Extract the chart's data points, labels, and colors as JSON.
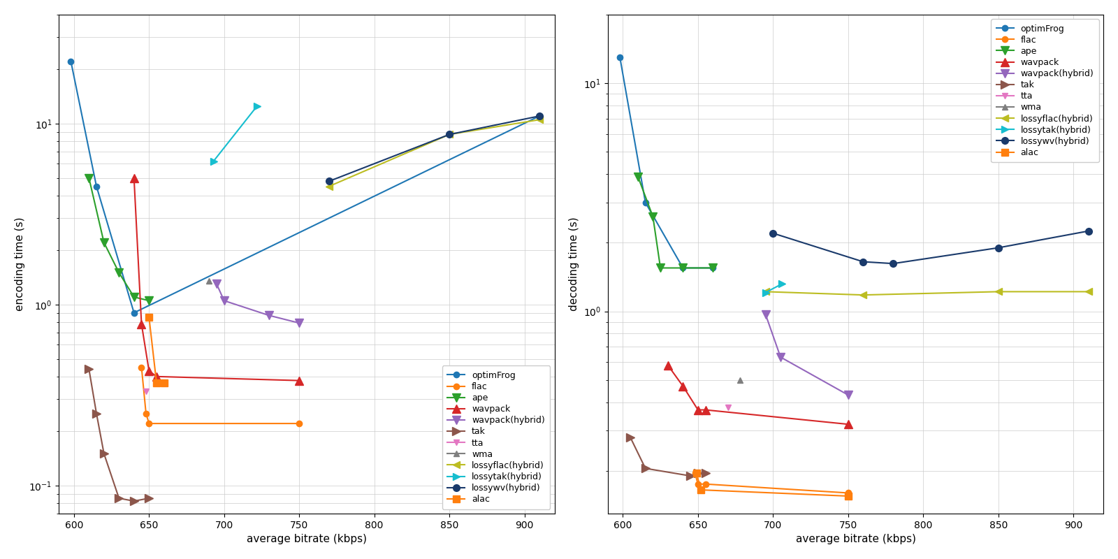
{
  "series": [
    {
      "name": "optimFrog",
      "color": "#1f77b4",
      "marker": "o",
      "enc_data": [
        [
          598,
          22
        ],
        [
          615,
          4.5
        ],
        [
          640,
          0.9
        ],
        [
          910,
          11.0
        ]
      ],
      "dec_data": [
        [
          598,
          13.0
        ],
        [
          615,
          3.0
        ],
        [
          640,
          1.55
        ],
        [
          660,
          1.55
        ]
      ]
    },
    {
      "name": "flac",
      "color": "#ff7f0e",
      "marker": "o",
      "enc_data": [
        [
          645,
          0.45
        ],
        [
          648,
          0.25
        ],
        [
          650,
          0.22
        ],
        [
          750,
          0.22
        ]
      ],
      "dec_data": [
        [
          648,
          0.195
        ],
        [
          650,
          0.175
        ],
        [
          655,
          0.175
        ],
        [
          750,
          0.16
        ]
      ]
    },
    {
      "name": "ape",
      "color": "#2ca02c",
      "marker": "v",
      "enc_data": [
        [
          610,
          5.0
        ],
        [
          620,
          2.2
        ],
        [
          630,
          1.5
        ],
        [
          640,
          1.1
        ],
        [
          650,
          1.05
        ]
      ],
      "dec_data": [
        [
          610,
          3.9
        ],
        [
          620,
          2.6
        ],
        [
          625,
          1.55
        ],
        [
          640,
          1.55
        ],
        [
          660,
          1.55
        ]
      ]
    },
    {
      "name": "wavpack",
      "color": "#d62728",
      "marker": "^",
      "enc_data": [
        [
          640,
          5.0
        ],
        [
          645,
          0.78
        ],
        [
          650,
          0.43
        ],
        [
          655,
          0.4
        ],
        [
          750,
          0.38
        ]
      ],
      "dec_data": [
        [
          630,
          0.58
        ],
        [
          640,
          0.47
        ],
        [
          650,
          0.37
        ],
        [
          655,
          0.37
        ],
        [
          750,
          0.32
        ]
      ]
    },
    {
      "name": "wavpack(hybrid)",
      "color": "#9467bd",
      "marker": "v",
      "enc_data": [
        [
          695,
          1.3
        ],
        [
          700,
          1.05
        ],
        [
          730,
          0.87
        ],
        [
          750,
          0.79
        ]
      ],
      "dec_data": [
        [
          695,
          0.97
        ],
        [
          705,
          0.63
        ],
        [
          750,
          0.43
        ]
      ]
    },
    {
      "name": "tak",
      "color": "#8c564b",
      "marker": ">",
      "enc_data": [
        [
          610,
          0.44
        ],
        [
          615,
          0.25
        ],
        [
          620,
          0.15
        ],
        [
          630,
          0.085
        ],
        [
          640,
          0.082
        ],
        [
          650,
          0.085
        ]
      ],
      "dec_data": [
        [
          605,
          0.28
        ],
        [
          615,
          0.205
        ],
        [
          645,
          0.19
        ],
        [
          650,
          0.195
        ],
        [
          655,
          0.195
        ]
      ]
    },
    {
      "name": "tta",
      "color": "#e377c2",
      "marker": "v",
      "enc_data": [
        [
          648,
          0.33
        ]
      ],
      "dec_data": [
        [
          670,
          0.38
        ]
      ]
    },
    {
      "name": "wma",
      "color": "#7f7f7f",
      "marker": "^",
      "enc_data": [
        [
          690,
          1.35
        ]
      ],
      "dec_data": [
        [
          678,
          0.5
        ]
      ]
    },
    {
      "name": "lossyflac(hybrid)",
      "color": "#bcbd22",
      "marker": "<",
      "enc_data": [
        [
          770,
          4.5
        ],
        [
          850,
          8.7
        ],
        [
          910,
          10.5
        ]
      ],
      "dec_data": [
        [
          695,
          1.22
        ],
        [
          760,
          1.18
        ],
        [
          850,
          1.22
        ],
        [
          910,
          1.22
        ]
      ]
    },
    {
      "name": "lossytak(hybrid)",
      "color": "#17becf",
      "marker": ">",
      "enc_data": [
        [
          693,
          6.2
        ],
        [
          722,
          12.5
        ]
      ],
      "dec_data": [
        [
          695,
          1.21
        ],
        [
          706,
          1.32
        ]
      ]
    },
    {
      "name": "lossywv(hybrid)",
      "color": "#1a3a6b",
      "marker": "o",
      "enc_data": [
        [
          770,
          4.8
        ],
        [
          850,
          8.7
        ],
        [
          910,
          11.0
        ]
      ],
      "dec_data": [
        [
          700,
          2.2
        ],
        [
          760,
          1.65
        ],
        [
          780,
          1.62
        ],
        [
          850,
          1.9
        ],
        [
          910,
          2.25
        ]
      ]
    },
    {
      "name": "alac",
      "color": "#ff7f0e",
      "marker": "s",
      "enc_data": [
        [
          650,
          0.85
        ],
        [
          655,
          0.37
        ],
        [
          660,
          0.37
        ]
      ],
      "dec_data": [
        [
          649,
          0.195
        ],
        [
          652,
          0.165
        ],
        [
          750,
          0.155
        ]
      ]
    }
  ],
  "enc_ylim": [
    0.07,
    40
  ],
  "dec_ylim": [
    0.13,
    20
  ],
  "xlim": [
    590,
    920
  ],
  "xlabel": "average bitrate (kbps)",
  "enc_ylabel": "encoding time (s)",
  "dec_ylabel": "decoding time (s)",
  "xticks": [
    600,
    650,
    700,
    750,
    800,
    850,
    900
  ],
  "legend_names": [
    "optimFrog",
    "flac",
    "ape",
    "wavpack",
    "wavpack(hybrid)",
    "tak",
    "tta",
    "wma",
    "lossyflac(hybrid)",
    "lossytak(hybrid)",
    "lossywv(hybrid)",
    "alac"
  ]
}
